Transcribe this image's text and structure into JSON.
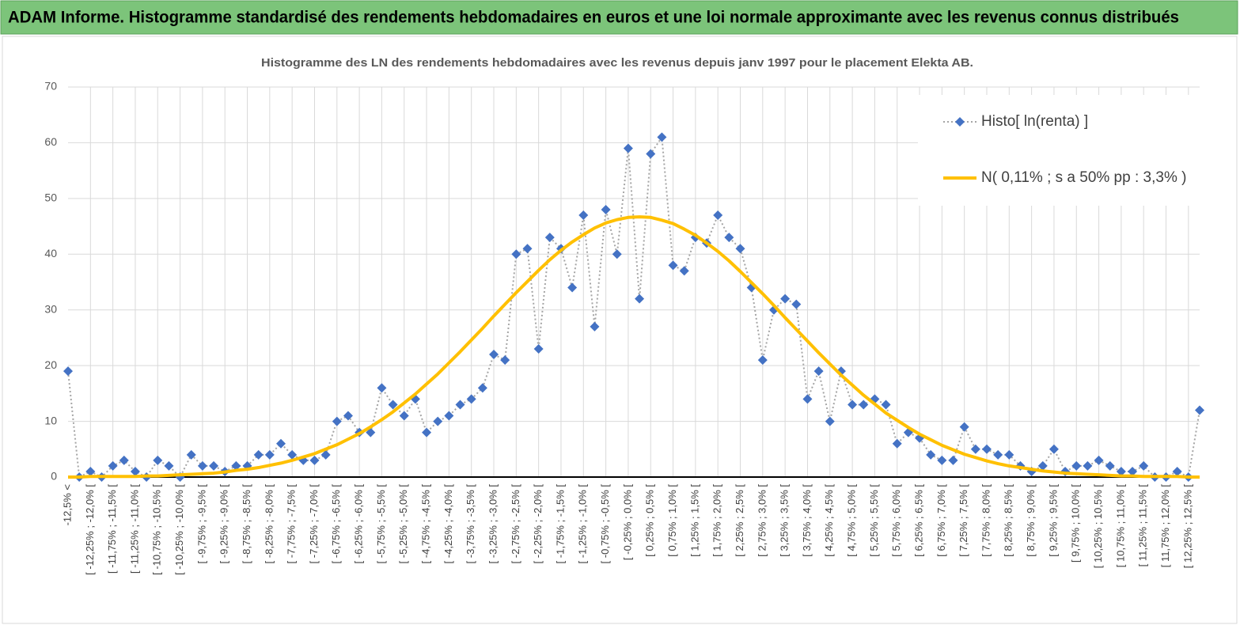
{
  "chart_data": {
    "type": "line",
    "title": "ADAM Informe. Histogramme standardisé des rendements hebdomadaires en euros et une loi normale approximante avec les revenus connus distribués",
    "subtitle": "Histogramme des LN des rendements hebdomadaires avec les revenus depuis janv 1997 pour le placement Elekta AB.",
    "categories": [
      "-12,5% <",
      null,
      "[ -12,25% ; -12,0% [",
      null,
      "[ -11,75% ; -11,5% [",
      null,
      "[ -11,25% ; -11,0% [",
      null,
      "[ -10,75% ; -10,5% [",
      null,
      "[ -10,25% ; -10,0% [",
      null,
      "[ -9,75% ; -9,5% [",
      null,
      "[ -9,25% ; -9,0% [",
      null,
      "[ -8,75% ; -8,5% [",
      null,
      "[ -8,25% ; -8,0% [",
      null,
      "[ -7,75% ; -7,5% [",
      null,
      "[ -7,25% ; -7,0% [",
      null,
      "[ -6,75% ; -6,5% [",
      null,
      "[ -6,25% ; -6,0% [",
      null,
      "[ -5,75% ; -5,5% [",
      null,
      "[ -5,25% ; -5,0% [",
      null,
      "[ -4,75% ; -4,5% [",
      null,
      "[ -4,25% ; -4,0% [",
      null,
      "[ -3,75% ; -3,5% [",
      null,
      "[ -3,25% ; -3,0% [",
      null,
      "[ -2,75% ; -2,5% [",
      null,
      "[ -2,25% ; -2,0% [",
      null,
      "[ -1,75% ; -1,5% [",
      null,
      "[ -1,25% ; -1,0% [",
      null,
      "[ -0,75% ; -0,5% [",
      null,
      "[ -0,25% ; 0,0% [",
      null,
      "[ 0,25% ; 0,5% [",
      null,
      "[ 0,75% ; 1,0% [",
      null,
      "[ 1,25% ; 1,5% [",
      null,
      "[ 1,75% ; 2,0% [",
      null,
      "[ 2,25% ; 2,5% [",
      null,
      "[ 2,75% ; 3,0% [",
      null,
      "[ 3,25% ; 3,5% [",
      null,
      "[ 3,75% ; 4,0% [",
      null,
      "[ 4,25% ; 4,5% [",
      null,
      "[ 4,75% ; 5,0% [",
      null,
      "[ 5,25% ; 5,5% [",
      null,
      "[ 5,75% ; 6,0% [",
      null,
      "[ 6,25% ; 6,5% [",
      null,
      "[ 6,75% ; 7,0% [",
      null,
      "[ 7,25% ; 7,5% [",
      null,
      "[ 7,75% ; 8,0% [",
      null,
      "[ 8,25% ; 8,5% [",
      null,
      "[ 8,75% ; 9,0% [",
      null,
      "[ 9,25% ; 9,5% [",
      null,
      "[ 9,75% ; 10,0% [",
      null,
      "[ 10,25% ; 10,5% [",
      null,
      "[ 10,75% ; 11,0% [",
      null,
      "[ 11,25% ; 11,5% [",
      null,
      "[ 11,75% ; 12,0% [",
      null,
      "[ 12,25% ; 12,5% [",
      null
    ],
    "series": [
      {
        "name": "Histo[ ln(renta) ]",
        "color": "#4472c4",
        "line_color": "#a5a5a5",
        "line_style": "dotted",
        "marker": "diamond",
        "values": [
          19,
          0,
          1,
          0,
          2,
          3,
          1,
          0,
          3,
          2,
          0,
          4,
          2,
          2,
          1,
          2,
          2,
          4,
          4,
          6,
          4,
          3,
          3,
          4,
          10,
          11,
          8,
          8,
          16,
          13,
          11,
          14,
          8,
          10,
          11,
          13,
          14,
          16,
          22,
          21,
          40,
          41,
          23,
          43,
          41,
          34,
          47,
          27,
          48,
          40,
          59,
          32,
          58,
          61,
          38,
          37,
          43,
          42,
          47,
          43,
          41,
          34,
          21,
          30,
          32,
          31,
          14,
          19,
          10,
          19,
          13,
          13,
          14,
          13,
          6,
          8,
          7,
          4,
          3,
          3,
          9,
          5,
          5,
          4,
          4,
          2,
          1,
          2,
          5,
          1,
          2,
          2,
          3,
          2,
          1,
          1,
          2,
          0,
          0,
          1,
          0,
          12
        ]
      },
      {
        "name": "N( 0,11% ; s a 50% pp : 3,3% )",
        "color": "#ffc000",
        "line_style": "solid",
        "marker": "none",
        "values": [
          0,
          0.0,
          0.1,
          0.1,
          0.1,
          0.1,
          0.1,
          0.2,
          0.2,
          0.3,
          0.4,
          0.5,
          0.6,
          0.7,
          0.9,
          1.2,
          1.4,
          1.7,
          2.1,
          2.5,
          3.0,
          3.6,
          4.2,
          5.0,
          5.8,
          6.8,
          7.8,
          9.0,
          10.3,
          11.7,
          13.3,
          14.9,
          16.7,
          18.5,
          20.5,
          22.5,
          24.6,
          26.7,
          28.9,
          31.0,
          33.1,
          35.1,
          37.1,
          39.0,
          40.7,
          42.2,
          43.5,
          44.7,
          45.6,
          46.2,
          46.6,
          46.7,
          46.6,
          46.1,
          45.5,
          44.5,
          43.4,
          42.0,
          40.5,
          38.8,
          36.9,
          34.9,
          32.9,
          30.8,
          28.6,
          26.5,
          24.4,
          22.3,
          20.3,
          18.3,
          16.5,
          14.7,
          13.1,
          11.5,
          10.2,
          8.9,
          7.7,
          6.7,
          5.7,
          4.9,
          4.1,
          3.5,
          2.9,
          2.4,
          2.0,
          1.7,
          1.4,
          1.1,
          0.9,
          0.7,
          0.6,
          0.5,
          0.4,
          0.3,
          0.2,
          0.2,
          0.1,
          0.1,
          0.1,
          0.1,
          0.0,
          0
        ]
      }
    ],
    "ylim": [
      0,
      70
    ],
    "yticks": [
      0,
      10,
      20,
      30,
      40,
      50,
      60,
      70
    ],
    "grid": true,
    "legend": "upper right"
  }
}
